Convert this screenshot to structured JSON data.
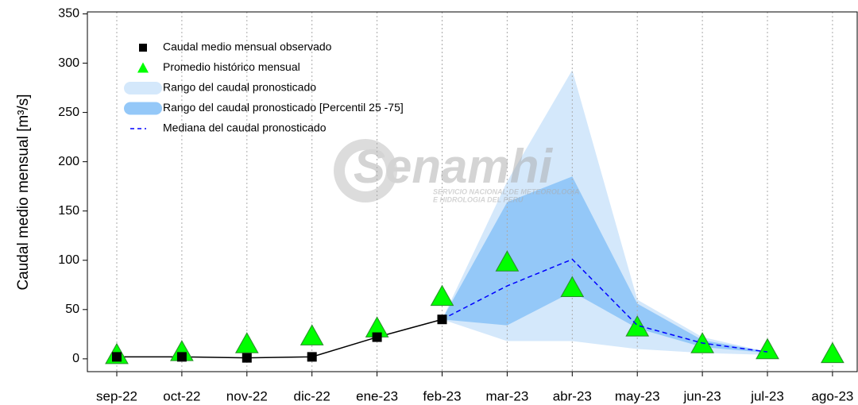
{
  "chart_data": {
    "type": "line",
    "ylabel": "Caudal medio mensual  [m³/s]",
    "watermark": {
      "name": "Senamhi",
      "line1": "SERVICIO NACIONAL DE METEOROLOGIA",
      "line2": "E HIDROLOGIA DEL PERU"
    },
    "categories": [
      "sep-22",
      "oct-22",
      "nov-22",
      "dic-22",
      "ene-23",
      "feb-23",
      "mar-23",
      "abr-23",
      "may-23",
      "jun-23",
      "jul-23",
      "ago-23"
    ],
    "ylim": [
      -13,
      352
    ],
    "yticks": [
      0,
      50,
      100,
      150,
      200,
      250,
      300,
      350
    ],
    "grid": true,
    "legend": "upper left",
    "series": [
      {
        "name": "Caudal medio mensual observado",
        "kind": "observed",
        "color": "#000000",
        "values": [
          2,
          2,
          1,
          2,
          22,
          40,
          null,
          null,
          null,
          null,
          null,
          null
        ]
      },
      {
        "name": "Promedio histórico mensual",
        "kind": "triangle",
        "color": "#00ff00",
        "values": [
          4,
          7,
          15,
          23,
          31,
          63,
          98,
          72,
          32,
          15,
          9,
          5
        ]
      },
      {
        "name": "Rango del caudal pronosticado",
        "kind": "band",
        "color": "#d4e8fb",
        "low": [
          null,
          null,
          null,
          null,
          null,
          40,
          18,
          18,
          10,
          6,
          4,
          null
        ],
        "high": [
          null,
          null,
          null,
          null,
          null,
          40,
          180,
          293,
          60,
          22,
          7,
          null
        ]
      },
      {
        "name": "Rango del caudal pronosticado [Percentil 25 -75]",
        "kind": "band",
        "color": "#94c8f8",
        "low": [
          null,
          null,
          null,
          null,
          null,
          40,
          34,
          68,
          31,
          12,
          6,
          null
        ],
        "high": [
          null,
          null,
          null,
          null,
          null,
          40,
          159,
          185,
          56,
          19,
          7,
          null
        ]
      },
      {
        "name": "Mediana del caudal pronosticado",
        "kind": "dashed",
        "color": "#0000ff",
        "values": [
          null,
          null,
          null,
          null,
          null,
          40,
          74,
          101,
          34,
          16,
          7,
          null
        ]
      }
    ]
  }
}
